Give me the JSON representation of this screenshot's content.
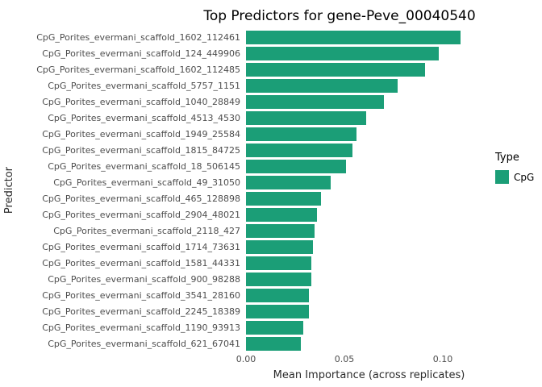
{
  "chart_data": {
    "type": "bar",
    "orientation": "horizontal",
    "title": "Top Predictors for gene-Peve_00040540",
    "xlabel": "Mean Importance (across replicates)",
    "ylabel": "Predictor",
    "bar_color": "#1B9E77",
    "xlim": [
      0,
      0.125
    ],
    "xticks": [
      0.0,
      0.05,
      0.1
    ],
    "xtick_labels": [
      "0.00",
      "0.05",
      "0.10"
    ],
    "grid": false,
    "legend": {
      "title": "Type",
      "position": "right",
      "entries": [
        {
          "label": "CpG",
          "color": "#1B9E77"
        }
      ]
    },
    "categories": [
      "CpG_Porites_evermani_scaffold_1602_112461",
      "CpG_Porites_evermani_scaffold_124_449906",
      "CpG_Porites_evermani_scaffold_1602_112485",
      "CpG_Porites_evermani_scaffold_5757_1151",
      "CpG_Porites_evermani_scaffold_1040_28849",
      "CpG_Porites_evermani_scaffold_4513_4530",
      "CpG_Porites_evermani_scaffold_1949_25584",
      "CpG_Porites_evermani_scaffold_1815_84725",
      "CpG_Porites_evermani_scaffold_18_506145",
      "CpG_Porites_evermani_scaffold_49_31050",
      "CpG_Porites_evermani_scaffold_465_128898",
      "CpG_Porites_evermani_scaffold_2904_48021",
      "CpG_Porites_evermani_scaffold_2118_427",
      "CpG_Porites_evermani_scaffold_1714_73631",
      "CpG_Porites_evermani_scaffold_1581_44331",
      "CpG_Porites_evermani_scaffold_900_98288",
      "CpG_Porites_evermani_scaffold_3541_28160",
      "CpG_Porites_evermani_scaffold_2245_18389",
      "CpG_Porites_evermani_scaffold_1190_93913",
      "CpG_Porites_evermani_scaffold_621_67041"
    ],
    "values": [
      0.109,
      0.098,
      0.091,
      0.077,
      0.07,
      0.061,
      0.056,
      0.054,
      0.051,
      0.043,
      0.038,
      0.036,
      0.035,
      0.034,
      0.033,
      0.033,
      0.032,
      0.032,
      0.029,
      0.028
    ]
  }
}
